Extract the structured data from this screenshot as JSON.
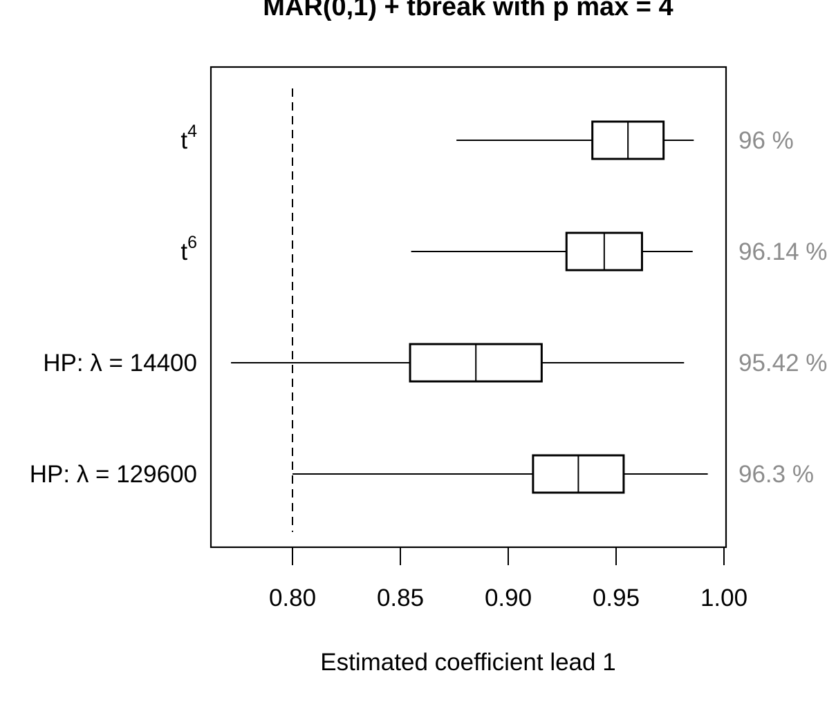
{
  "chart_data": {
    "type": "forest",
    "title": "MAR(0,1) + tbreak with p max = 4",
    "xlabel": "Estimated coefficient lead 1",
    "xlim": [
      0.762,
      1.0
    ],
    "x_ticks": [
      "0.80",
      "0.85",
      "0.90",
      "0.95",
      "1.00"
    ],
    "x_tick_values": [
      0.8,
      0.85,
      0.9,
      0.95,
      1.0
    ],
    "reference_line": 0.8,
    "grid": false,
    "rows": [
      {
        "label_base": "t",
        "label_sup": "4",
        "label_text": "",
        "estimate": 0.9555,
        "lower": 0.876,
        "upper": 0.986,
        "box_width": 0.0165,
        "coverage": "96 %"
      },
      {
        "label_base": "t",
        "label_sup": "6",
        "label_text": "",
        "estimate": 0.9445,
        "lower": 0.855,
        "upper": 0.9855,
        "box_width": 0.0175,
        "coverage": "96.14 %"
      },
      {
        "label_base": "",
        "label_sup": "",
        "label_text": "HP: λ = 14400",
        "estimate": 0.885,
        "lower": 0.7715,
        "upper": 0.9815,
        "box_width": 0.0305,
        "coverage": "95.42 %"
      },
      {
        "label_base": "",
        "label_sup": "",
        "label_text": "HP: λ = 129600",
        "estimate": 0.9325,
        "lower": 0.8,
        "upper": 0.9925,
        "box_width": 0.021,
        "coverage": "96.3 %"
      }
    ]
  }
}
